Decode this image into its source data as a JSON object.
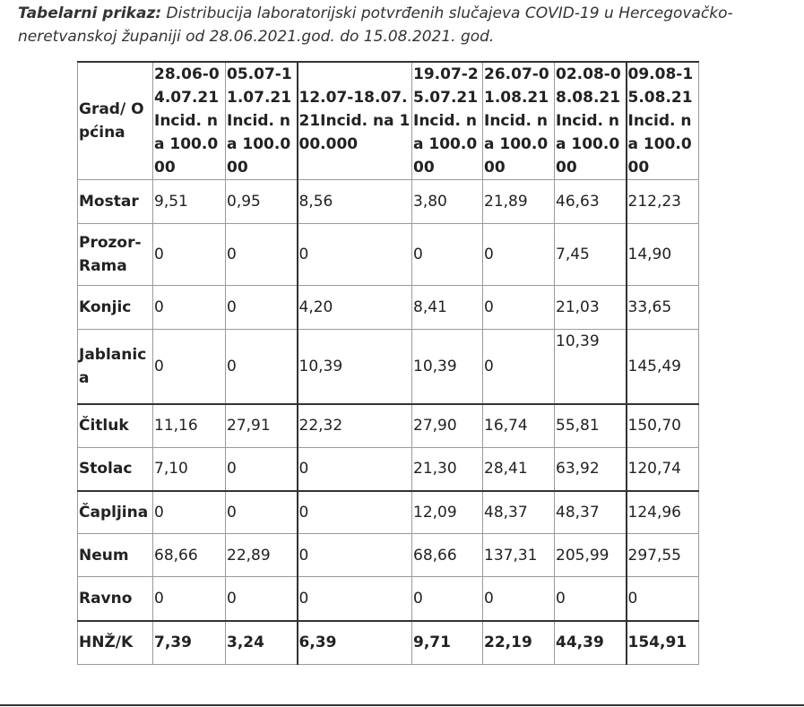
{
  "caption": {
    "label": "Tabelarni prikaz:",
    "text": " Distribucija laboratorijski potvrđenih slučajeva COVID-19 u Hercegovačko-neretvanskoj županiji od 28.06.2021.god. do 15.08.2021. god."
  },
  "table": {
    "headers": [
      "Grad/ Općina",
      "28.06-04.07.21 Incid. na 100.000",
      "05.07-11.07.21 Incid. na 100.000",
      "12.07-18.07.21Incid. na 100.000",
      "19.07-25.07.21 Incid. na 100.000",
      "26.07-01.08.21 Incid. na 100.000",
      "02.08-08.08.21 Incid. na 100.000",
      "09.08-15.08.21 Incid. na 100.000"
    ],
    "rows": [
      [
        "Mostar",
        "9,51",
        "0,95",
        "8,56",
        "3,80",
        "21,89",
        "46,63",
        "212,23"
      ],
      [
        "Prozor-Rama",
        "0",
        "0",
        "0",
        "0",
        "0",
        "7,45",
        "14,90"
      ],
      [
        "Konjic",
        "0",
        "0",
        "4,20",
        "8,41",
        "0",
        "21,03",
        "33,65"
      ],
      [
        "Jablanica",
        "0",
        "0",
        "10,39",
        "10,39",
        "0",
        "10,39",
        "145,49"
      ],
      [
        "Čitluk",
        "11,16",
        "27,91",
        "22,32",
        "27,90",
        "16,74",
        "55,81",
        "150,70"
      ],
      [
        "Stolac",
        "7,10",
        "0",
        "0",
        "21,30",
        "28,41",
        "63,92",
        "120,74"
      ],
      [
        "Čapljina",
        "0",
        "0",
        "0",
        "12,09",
        "48,37",
        "48,37",
        "124,96"
      ],
      [
        "Neum",
        "68,66",
        "22,89",
        "0",
        "68,66",
        "137,31",
        "205,99",
        "297,55"
      ],
      [
        "Ravno",
        "0",
        "0",
        "0",
        "0",
        "0",
        "0",
        "0"
      ],
      [
        "HNŽ/K",
        "7,39",
        "3,24",
        "6,39",
        "9,71",
        "22,19",
        "44,39",
        "154,91"
      ]
    ]
  }
}
